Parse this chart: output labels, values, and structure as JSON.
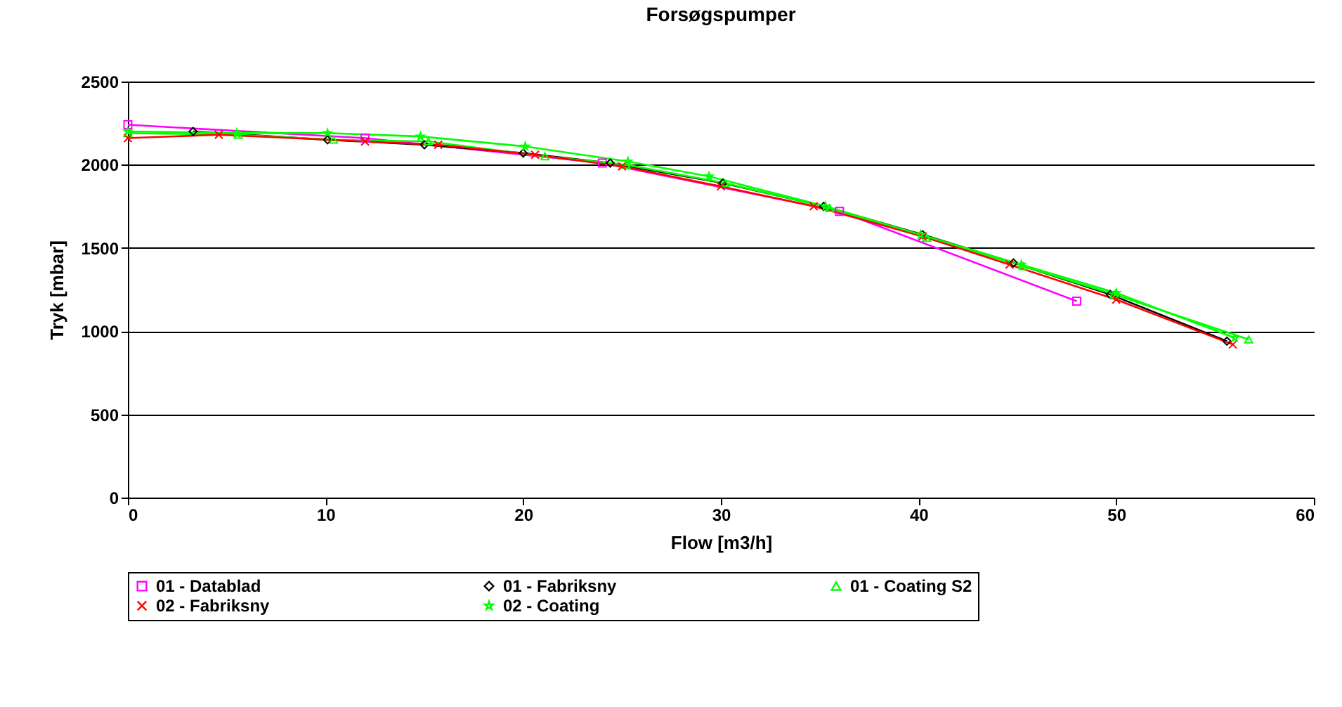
{
  "chart_data": {
    "type": "line",
    "title": "Forsøgspumper",
    "xlabel": "Flow [m3/h]",
    "ylabel": "Tryk [mbar]",
    "xlim": [
      0,
      60
    ],
    "xticks": [
      0,
      10,
      20,
      30,
      40,
      50,
      60
    ],
    "ylim": [
      0,
      2500
    ],
    "yticks": [
      0,
      500,
      1000,
      1500,
      2000,
      2500
    ],
    "grid": "y",
    "legend": "bottom",
    "line_style": "solid",
    "series": [
      {
        "name": "01 - Datablad",
        "color": "#ff00ff",
        "marker": "square",
        "x": [
          0,
          12,
          24,
          36,
          48
        ],
        "values": [
          2240,
          2160,
          2010,
          1720,
          1180
        ]
      },
      {
        "name": "01 - Fabriksny",
        "color": "#000000",
        "marker": "diamond",
        "x": [
          3.3,
          10.1,
          15,
          20,
          24.4,
          30.1,
          35.2,
          40.2,
          44.8,
          49.7,
          55.6
        ],
        "values": [
          2200,
          2150,
          2120,
          2070,
          2010,
          1890,
          1750,
          1580,
          1410,
          1220,
          940
        ]
      },
      {
        "name": "01 - Coating S2",
        "color": "#00ff00",
        "marker": "triangle",
        "x": [
          0,
          5.6,
          10.4,
          15.2,
          21.1,
          25.2,
          30.2,
          35.5,
          40.4,
          45.3,
          49.9,
          56.7
        ],
        "values": [
          2190,
          2180,
          2150,
          2140,
          2050,
          2000,
          1890,
          1740,
          1560,
          1390,
          1220,
          950
        ]
      },
      {
        "name": "02 - Fabriksny",
        "color": "#ff0000",
        "marker": "cross",
        "x": [
          0,
          4.6,
          12,
          15.7,
          20.6,
          25,
          30,
          34.7,
          40.2,
          44.6,
          50,
          55.9
        ],
        "values": [
          2160,
          2180,
          2140,
          2120,
          2060,
          1990,
          1870,
          1750,
          1570,
          1400,
          1190,
          920
        ]
      },
      {
        "name": "02 - Coating",
        "color": "#00ff00",
        "marker": "star",
        "x": [
          0,
          5.5,
          10.1,
          14.8,
          20.1,
          25.3,
          29.4,
          35.3,
          40.1,
          45.2,
          50,
          56
        ],
        "values": [
          2200,
          2190,
          2190,
          2170,
          2110,
          2020,
          1930,
          1750,
          1580,
          1400,
          1230,
          960
        ]
      }
    ]
  }
}
